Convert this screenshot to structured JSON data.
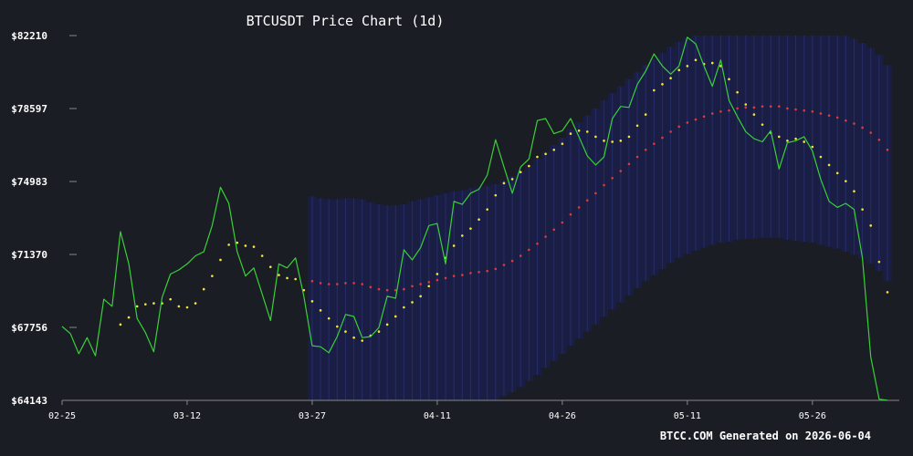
{
  "chart_data": {
    "type": "line",
    "title": "BTCUSDT Price Chart (1d)",
    "footer": "BTCC.COM Generated on 2026-06-04",
    "y_ticks": [
      "$82210",
      "$78597",
      "$74983",
      "$71370",
      "$67756",
      "$64143"
    ],
    "y_tick_values": [
      82210,
      78597,
      74983,
      71370,
      67756,
      64143
    ],
    "x_ticks": [
      "02-25",
      "03-12",
      "03-27",
      "04-11",
      "04-26",
      "05-11",
      "05-26"
    ],
    "x_tick_index": [
      0,
      15,
      30,
      45,
      60,
      75,
      90
    ],
    "ylim": [
      64143,
      82210
    ],
    "colors": {
      "background": "#1b1d24",
      "price": "#39d039",
      "ma_short": "#f5e63a",
      "ma_long": "#e03a3a",
      "band": "#1a1f4a",
      "band_stripe": "#262c68",
      "text": "#ffffff",
      "axis": "#888888"
    },
    "series": [
      {
        "style": "line",
        "color": "#39d039",
        "values": [
          67800,
          67450,
          66450,
          67250,
          66350,
          69150,
          68800,
          72500,
          70900,
          68200,
          67500,
          66550,
          69250,
          70400,
          70600,
          70900,
          71300,
          71500,
          72800,
          74700,
          73900,
          71500,
          70300,
          70700,
          69400,
          68100,
          70900,
          70700,
          71200,
          69300,
          66850,
          66800,
          66500,
          67300,
          68400,
          68300,
          67250,
          67300,
          67750,
          69300,
          69200,
          71600,
          71100,
          71700,
          72800,
          72900,
          70900,
          74000,
          73850,
          74400,
          74600,
          75300,
          77050,
          75700,
          74400,
          75700,
          76100,
          78000,
          78100,
          77350,
          77500,
          78100,
          77200,
          76250,
          75800,
          76200,
          78100,
          78700,
          78650,
          79800,
          80450,
          81300,
          80700,
          80300,
          80700,
          82130,
          81800,
          80700,
          79700,
          81000,
          79000,
          78200,
          77450,
          77100,
          76950,
          77500,
          75600,
          76900,
          77000,
          77200,
          76500,
          75100,
          74000,
          73700,
          73900,
          73600,
          71200,
          66300,
          64200,
          64150
        ]
      },
      {
        "style": "dots",
        "color": "#f5e63a",
        "values": [
          null,
          null,
          null,
          null,
          null,
          null,
          null,
          67900,
          68250,
          68800,
          68900,
          68950,
          68950,
          69150,
          68800,
          68750,
          68950,
          69650,
          70300,
          71100,
          71850,
          71950,
          71800,
          71750,
          71300,
          70750,
          70350,
          70200,
          70150,
          69600,
          69050,
          68600,
          68200,
          67800,
          67550,
          67250,
          67100,
          67350,
          67550,
          67900,
          68300,
          68750,
          69000,
          69300,
          69800,
          70400,
          71200,
          71800,
          72300,
          72650,
          73100,
          73600,
          74300,
          74900,
          75100,
          75450,
          75750,
          76200,
          76350,
          76550,
          76850,
          77350,
          77500,
          77450,
          77200,
          77000,
          76950,
          77000,
          77200,
          77750,
          78300,
          79500,
          79800,
          80100,
          80500,
          80700,
          81000,
          80800,
          80850,
          80700,
          80050,
          79400,
          78800,
          78300,
          77800,
          77400,
          77200,
          77000,
          77100,
          76950,
          76700,
          76200,
          75800,
          75400,
          75000,
          74500,
          73600,
          72800,
          71000,
          69500
        ]
      },
      {
        "style": "dots",
        "color": "#e03a3a",
        "values": [
          null,
          null,
          null,
          null,
          null,
          null,
          null,
          null,
          null,
          null,
          null,
          null,
          null,
          null,
          null,
          null,
          null,
          null,
          null,
          null,
          null,
          null,
          null,
          null,
          null,
          null,
          null,
          null,
          null,
          null,
          70050,
          69950,
          69900,
          69900,
          69950,
          69950,
          69900,
          69750,
          69650,
          69600,
          69600,
          69650,
          69800,
          69900,
          70000,
          70100,
          70200,
          70300,
          70350,
          70450,
          70500,
          70550,
          70650,
          70850,
          71050,
          71300,
          71600,
          71900,
          72250,
          72600,
          72950,
          73350,
          73700,
          74050,
          74400,
          74800,
          75150,
          75500,
          75850,
          76200,
          76550,
          76850,
          77150,
          77450,
          77700,
          77900,
          78050,
          78200,
          78350,
          78450,
          78500,
          78600,
          78650,
          78650,
          78700,
          78700,
          78700,
          78600,
          78550,
          78500,
          78450,
          78350,
          78250,
          78150,
          78000,
          77850,
          77650,
          77400,
          77050,
          76550
        ]
      }
    ]
  }
}
